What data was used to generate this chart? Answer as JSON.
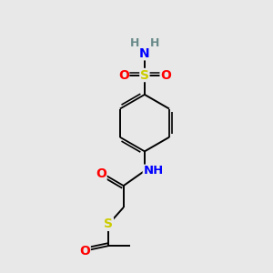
{
  "background_color": "#e8e8e8",
  "atom_colors": {
    "C": "#000000",
    "H": "#6a8a8a",
    "N": "#0000FF",
    "O": "#FF0000",
    "S": "#cccc00",
    "S2": "#cccc00"
  },
  "bond_color": "#000000",
  "figsize": [
    3.0,
    3.0
  ],
  "dpi": 100,
  "xlim": [
    0,
    10
  ],
  "ylim": [
    0,
    10
  ]
}
